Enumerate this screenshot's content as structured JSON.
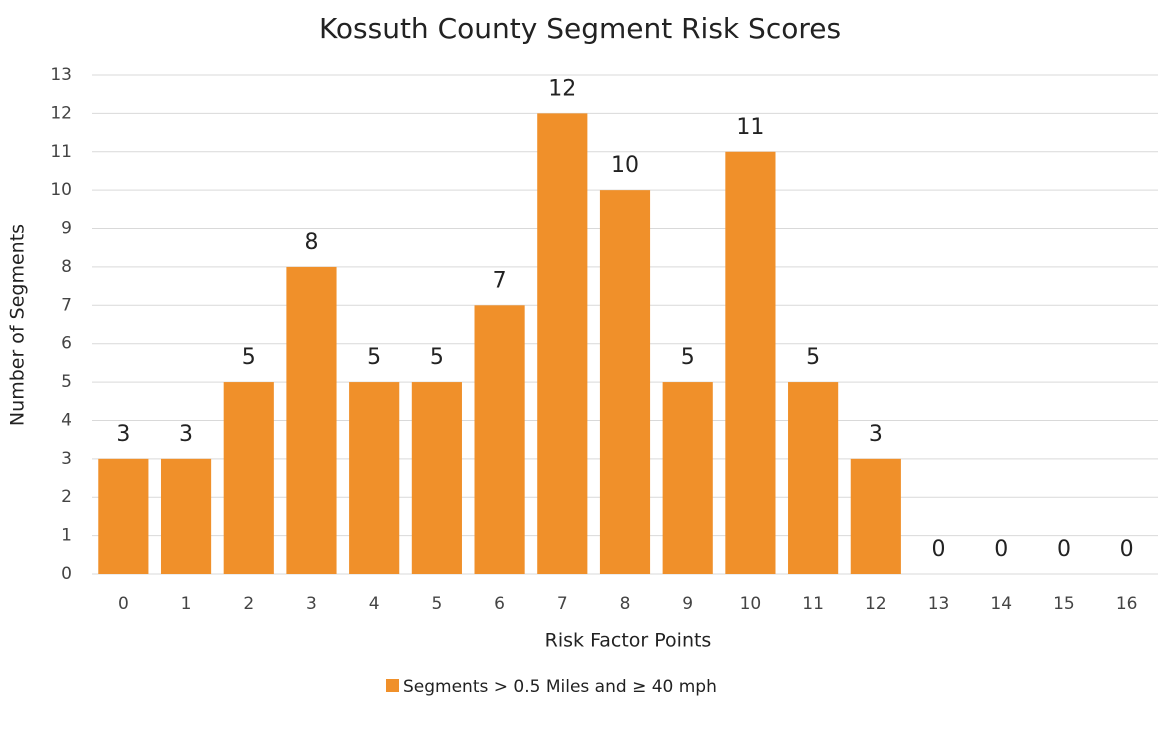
{
  "chart_data": {
    "type": "bar",
    "title": "Kossuth County Segment Risk Scores",
    "x_label": "Risk Factor Points",
    "y_label": "Number of Segments",
    "categories": [
      "0",
      "1",
      "2",
      "3",
      "4",
      "5",
      "6",
      "7",
      "8",
      "9",
      "10",
      "11",
      "12",
      "13",
      "14",
      "15",
      "16"
    ],
    "series": [
      {
        "name": "Segments > 0.5 Miles and ≥ 40 mph",
        "color": "#f0902a",
        "values": [
          3,
          3,
          5,
          8,
          5,
          5,
          7,
          12,
          10,
          5,
          11,
          5,
          3,
          0,
          0,
          0,
          0
        ]
      }
    ],
    "ylim": [
      0,
      13
    ],
    "yticks": [
      0,
      1,
      2,
      3,
      4,
      5,
      6,
      7,
      8,
      9,
      10,
      11,
      12,
      13
    ],
    "grid": true,
    "legend": "bottom",
    "data_labels": true
  }
}
